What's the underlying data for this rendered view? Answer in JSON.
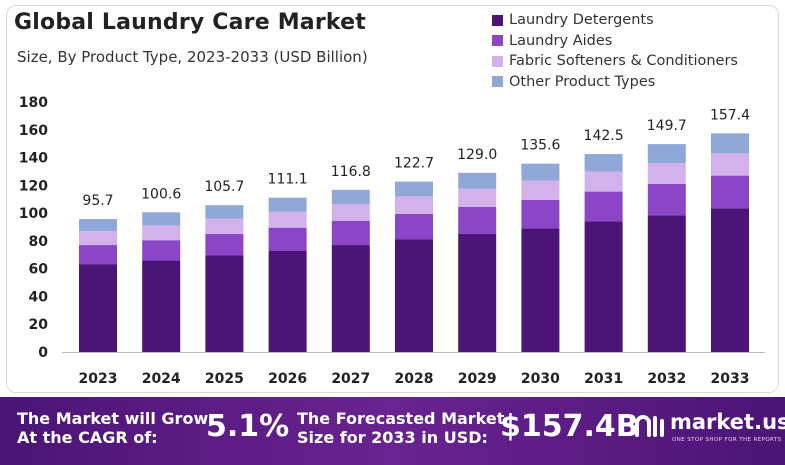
{
  "chart_data": {
    "type": "bar",
    "stacked": true,
    "title": "Global Laundry Care Market",
    "subtitle": "Size, By Product Type, 2023-2033 (USD Billion)",
    "categories": [
      "2023",
      "2024",
      "2025",
      "2026",
      "2027",
      "2028",
      "2029",
      "2030",
      "2031",
      "2032",
      "2033"
    ],
    "totals": [
      "95.7",
      "100.6",
      "105.7",
      "111.1",
      "116.8",
      "122.7",
      "129.0",
      "135.6",
      "142.5",
      "149.7",
      "157.4"
    ],
    "series": [
      {
        "name": "Laundry Detergents",
        "color": "#4a1577",
        "values": [
          63,
          66,
          69.5,
          73,
          77,
          81,
          85,
          89,
          94,
          98.5,
          103.5
        ]
      },
      {
        "name": "Laundry Aides",
        "color": "#8b45c7",
        "values": [
          14,
          14.5,
          15.5,
          16.5,
          17.5,
          18.5,
          19.5,
          20.5,
          21.5,
          22.5,
          23.5
        ]
      },
      {
        "name": "Fabric Softeners & Conditioners",
        "color": "#d3b1ea",
        "values": [
          10,
          10.5,
          11,
          11.5,
          12,
          12.5,
          13,
          14,
          14.5,
          15,
          16
        ]
      },
      {
        "name": "Other Product Types",
        "color": "#8fa8d8",
        "values": [
          8.7,
          9.6,
          9.7,
          10.1,
          10.3,
          10.7,
          11.5,
          12.1,
          12.5,
          13.7,
          14.4
        ]
      }
    ],
    "yticks": [
      "0",
      "20",
      "40",
      "60",
      "80",
      "100",
      "120",
      "140",
      "160",
      "180"
    ],
    "ylim": [
      0,
      180
    ],
    "grid": false,
    "legend_position": "top-right"
  },
  "footer": {
    "cagr_label_line1": "The Market will Grow",
    "cagr_label_line2": "At the CAGR of:",
    "cagr_value": "5.1%",
    "forecast_label_line1": "The Forecasted Market",
    "forecast_label_line2": "Size for 2033 in USD:",
    "forecast_value": "$157.4B",
    "brand": "market.us",
    "brand_tagline": "ONE STOP SHOP FOR THE REPORTS"
  }
}
